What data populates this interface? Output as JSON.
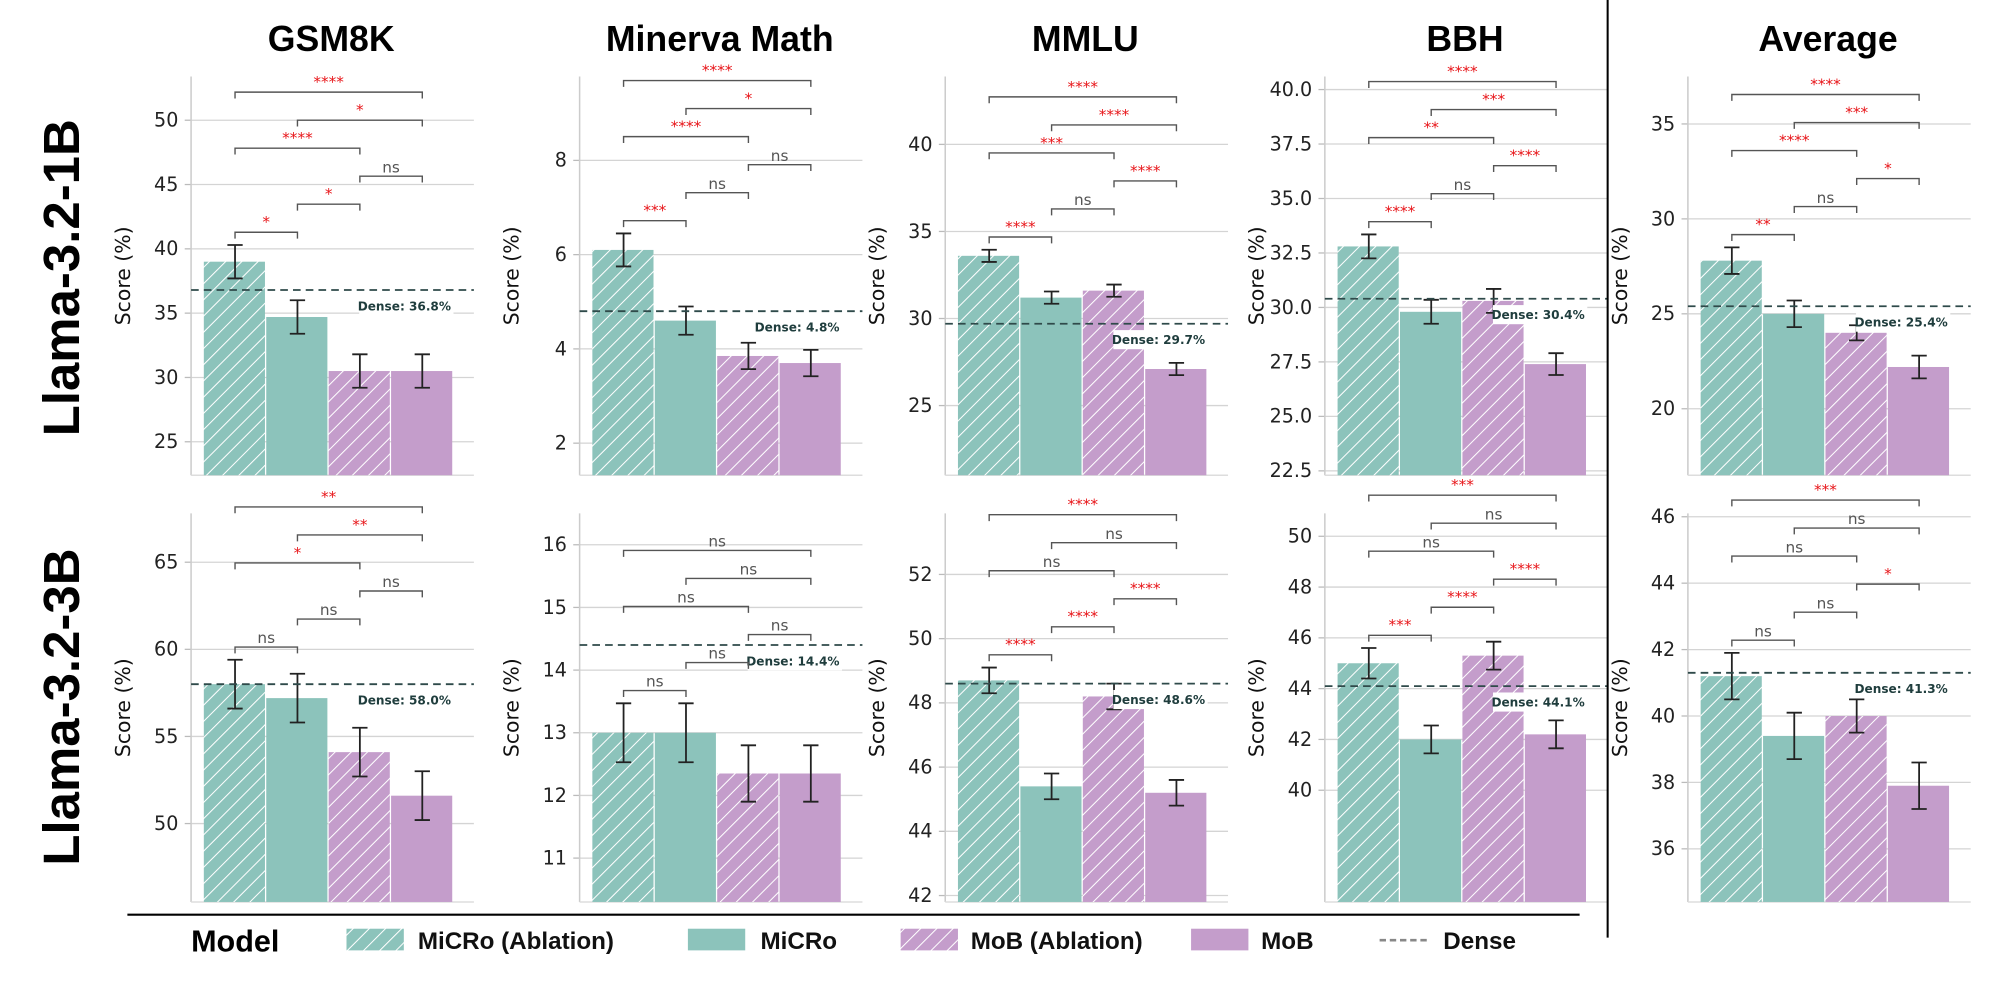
{
  "colors": {
    "micro": "#8cc3bb",
    "mob": "#c49dcb",
    "dense_line": "#2f4a4a",
    "significant": "#e8171b",
    "ns": "#555555",
    "grid": "#d4d4d4"
  },
  "legend": {
    "title": "Model",
    "items": [
      {
        "label": "MiCRo (Ablation)",
        "color": "#8cc3bb",
        "hatched": true
      },
      {
        "label": "MiCRo",
        "color": "#8cc3bb",
        "hatched": false
      },
      {
        "label": "MoB (Ablation)",
        "color": "#c49dcb",
        "hatched": true
      },
      {
        "label": "MoB",
        "color": "#c49dcb",
        "hatched": false
      },
      {
        "label": "Dense",
        "style": "dashed-line"
      }
    ]
  },
  "row_labels": [
    "Llama-3.2-1B",
    "Llama-3.2-3B"
  ],
  "column_titles": [
    "GSM8K",
    "Minerva Math",
    "MMLU",
    "BBH",
    "Average"
  ],
  "chart_data": [
    {
      "type": "bar",
      "row": "Llama-3.2-1B",
      "title": "GSM8K",
      "ylabel": "Score (%)",
      "ylim": [
        22.4,
        53.4
      ],
      "ticks": [
        "25",
        "30",
        "35",
        "40",
        "45",
        "50"
      ],
      "grid": true,
      "categories": [
        "MiCRo (Ablation)",
        "MiCRo",
        "MoB (Ablation)",
        "MoB"
      ],
      "values": [
        39.0,
        34.7,
        30.5,
        30.5
      ],
      "errors": [
        1.3,
        1.3,
        1.3,
        1.3
      ],
      "dense": 36.8,
      "dense_label": "Dense: 36.8%",
      "significance": [
        [
          0,
          1,
          "*"
        ],
        [
          1,
          2,
          "*"
        ],
        [
          2,
          3,
          "ns"
        ],
        [
          0,
          2,
          "****"
        ],
        [
          1,
          3,
          "*"
        ],
        [
          0,
          3,
          "****"
        ]
      ]
    },
    {
      "type": "bar",
      "row": "Llama-3.2-1B",
      "title": "Minerva Math",
      "ylabel": "Score (%)",
      "ylim": [
        1.32,
        9.78
      ],
      "ticks": [
        "2",
        "4",
        "6",
        "8"
      ],
      "grid": true,
      "categories": [
        "MiCRo (Ablation)",
        "MiCRo",
        "MoB (Ablation)",
        "MoB"
      ],
      "values": [
        6.1,
        4.6,
        3.85,
        3.7
      ],
      "errors": [
        0.35,
        0.3,
        0.28,
        0.28
      ],
      "dense": 4.8,
      "dense_label": "Dense: 4.8%",
      "significance": [
        [
          0,
          1,
          "***"
        ],
        [
          1,
          2,
          "ns"
        ],
        [
          2,
          3,
          "ns"
        ],
        [
          0,
          2,
          "****"
        ],
        [
          1,
          3,
          "*"
        ],
        [
          0,
          3,
          "****"
        ]
      ]
    },
    {
      "type": "bar",
      "row": "Llama-3.2-1B",
      "title": "MMLU",
      "ylabel": "Score (%)",
      "ylim": [
        21.0,
        43.9
      ],
      "ticks": [
        "25",
        "30",
        "35",
        "40"
      ],
      "grid": true,
      "categories": [
        "MiCRo (Ablation)",
        "MiCRo",
        "MoB (Ablation)",
        "MoB"
      ],
      "values": [
        33.6,
        31.2,
        31.6,
        27.1
      ],
      "errors": [
        0.35,
        0.35,
        0.35,
        0.35
      ],
      "dense": 29.7,
      "dense_label": "Dense: 29.7%",
      "significance": [
        [
          0,
          1,
          "****"
        ],
        [
          1,
          2,
          "ns"
        ],
        [
          2,
          3,
          "****"
        ],
        [
          0,
          2,
          "***"
        ],
        [
          1,
          3,
          "****"
        ],
        [
          0,
          3,
          "****"
        ]
      ]
    },
    {
      "type": "bar",
      "row": "Llama-3.2-1B",
      "title": "BBH",
      "ylabel": "Score (%)",
      "ylim": [
        22.3,
        40.6
      ],
      "ticks": [
        "22.5",
        "25.0",
        "27.5",
        "30.0",
        "32.5",
        "35.0",
        "37.5",
        "40.0"
      ],
      "grid": true,
      "categories": [
        "MiCRo (Ablation)",
        "MiCRo",
        "MoB (Ablation)",
        "MoB"
      ],
      "values": [
        32.8,
        29.8,
        30.3,
        27.4
      ],
      "errors": [
        0.55,
        0.55,
        0.55,
        0.5
      ],
      "dense": 30.4,
      "dense_label": "Dense: 30.4%",
      "significance": [
        [
          0,
          1,
          "****"
        ],
        [
          1,
          2,
          "ns"
        ],
        [
          2,
          3,
          "****"
        ],
        [
          0,
          2,
          "**"
        ],
        [
          1,
          3,
          "***"
        ],
        [
          0,
          3,
          "****"
        ]
      ]
    },
    {
      "type": "bar",
      "row": "Llama-3.2-1B",
      "title": "Average",
      "ylabel": "Score (%)",
      "ylim": [
        16.5,
        37.5
      ],
      "ticks": [
        "20",
        "25",
        "30",
        "35"
      ],
      "grid": true,
      "categories": [
        "MiCRo (Ablation)",
        "MiCRo",
        "MoB (Ablation)",
        "MoB"
      ],
      "values": [
        27.8,
        25.0,
        24.0,
        22.2
      ],
      "errors": [
        0.7,
        0.7,
        0.4,
        0.6
      ],
      "dense": 25.4,
      "dense_label": "Dense: 25.4%",
      "significance": [
        [
          0,
          1,
          "**"
        ],
        [
          1,
          2,
          "ns"
        ],
        [
          2,
          3,
          "*"
        ],
        [
          0,
          2,
          "****"
        ],
        [
          1,
          3,
          "***"
        ],
        [
          0,
          3,
          "****"
        ]
      ]
    },
    {
      "type": "bar",
      "row": "Llama-3.2-3B",
      "title": "GSM8K",
      "ylabel": "Score (%)",
      "ylim": [
        45.5,
        67.8
      ],
      "ticks": [
        "50",
        "55",
        "60",
        "65"
      ],
      "grid": true,
      "categories": [
        "MiCRo (Ablation)",
        "MiCRo",
        "MoB (Ablation)",
        "MoB"
      ],
      "values": [
        58.0,
        57.2,
        54.1,
        51.6
      ],
      "errors": [
        1.4,
        1.4,
        1.4,
        1.4
      ],
      "dense": 58.0,
      "dense_label": "Dense: 58.0%",
      "significance": [
        [
          0,
          1,
          "ns"
        ],
        [
          1,
          2,
          "ns"
        ],
        [
          2,
          3,
          "ns"
        ],
        [
          0,
          2,
          "*"
        ],
        [
          1,
          3,
          "**"
        ],
        [
          0,
          3,
          "**"
        ]
      ]
    },
    {
      "type": "bar",
      "row": "Llama-3.2-3B",
      "title": "Minerva Math",
      "ylabel": "Score (%)",
      "ylim": [
        10.3,
        16.5
      ],
      "ticks": [
        "11",
        "12",
        "13",
        "14",
        "15",
        "16"
      ],
      "grid": true,
      "categories": [
        "MiCRo (Ablation)",
        "MiCRo",
        "MoB (Ablation)",
        "MoB"
      ],
      "values": [
        13.0,
        13.0,
        12.35,
        12.35
      ],
      "errors": [
        0.47,
        0.47,
        0.45,
        0.45
      ],
      "dense": 14.4,
      "dense_label": "Dense: 14.4%",
      "significance": [
        [
          0,
          1,
          "ns"
        ],
        [
          1,
          2,
          "ns"
        ],
        [
          2,
          3,
          "ns"
        ],
        [
          0,
          2,
          "ns"
        ],
        [
          1,
          3,
          "ns"
        ],
        [
          0,
          3,
          "ns"
        ]
      ]
    },
    {
      "type": "bar",
      "row": "Llama-3.2-3B",
      "title": "MMLU",
      "ylabel": "Score (%)",
      "ylim": [
        41.8,
        53.9
      ],
      "ticks": [
        "42",
        "44",
        "46",
        "48",
        "50",
        "52"
      ],
      "grid": true,
      "categories": [
        "MiCRo (Ablation)",
        "MiCRo",
        "MoB (Ablation)",
        "MoB"
      ],
      "values": [
        48.7,
        45.4,
        48.2,
        45.2
      ],
      "errors": [
        0.4,
        0.4,
        0.4,
        0.4
      ],
      "dense": 48.6,
      "dense_label": "Dense: 48.6%",
      "significance": [
        [
          0,
          1,
          "****"
        ],
        [
          1,
          2,
          "****"
        ],
        [
          2,
          3,
          "****"
        ],
        [
          0,
          2,
          "ns"
        ],
        [
          1,
          3,
          "ns"
        ],
        [
          0,
          3,
          "****"
        ]
      ]
    },
    {
      "type": "bar",
      "row": "Llama-3.2-3B",
      "title": "BBH",
      "ylabel": "Score (%)",
      "ylim": [
        35.6,
        50.9
      ],
      "ticks": [
        "40",
        "42",
        "44",
        "46",
        "48",
        "50"
      ],
      "grid": true,
      "categories": [
        "MiCRo (Ablation)",
        "MiCRo",
        "MoB (Ablation)",
        "MoB"
      ],
      "values": [
        45.0,
        42.0,
        45.3,
        42.2
      ],
      "errors": [
        0.6,
        0.55,
        0.55,
        0.55
      ],
      "dense": 44.1,
      "dense_label": "Dense: 44.1%",
      "significance": [
        [
          0,
          1,
          "***"
        ],
        [
          1,
          2,
          "****"
        ],
        [
          2,
          3,
          "****"
        ],
        [
          0,
          2,
          "ns"
        ],
        [
          1,
          3,
          "ns"
        ],
        [
          0,
          3,
          "***"
        ]
      ]
    },
    {
      "type": "bar",
      "row": "Llama-3.2-3B",
      "title": "Average",
      "ylabel": "Score (%)",
      "ylim": [
        34.4,
        46.1
      ],
      "ticks": [
        "36",
        "38",
        "40",
        "42",
        "44",
        "46"
      ],
      "grid": true,
      "categories": [
        "MiCRo (Ablation)",
        "MiCRo",
        "MoB (Ablation)",
        "MoB"
      ],
      "values": [
        41.2,
        39.4,
        40.0,
        37.9
      ],
      "errors": [
        0.7,
        0.7,
        0.5,
        0.7
      ],
      "dense": 41.3,
      "dense_label": "Dense: 41.3%",
      "significance": [
        [
          0,
          1,
          "ns"
        ],
        [
          1,
          2,
          "ns"
        ],
        [
          2,
          3,
          "*"
        ],
        [
          0,
          2,
          "ns"
        ],
        [
          1,
          3,
          "ns"
        ],
        [
          0,
          3,
          "***"
        ]
      ]
    }
  ]
}
